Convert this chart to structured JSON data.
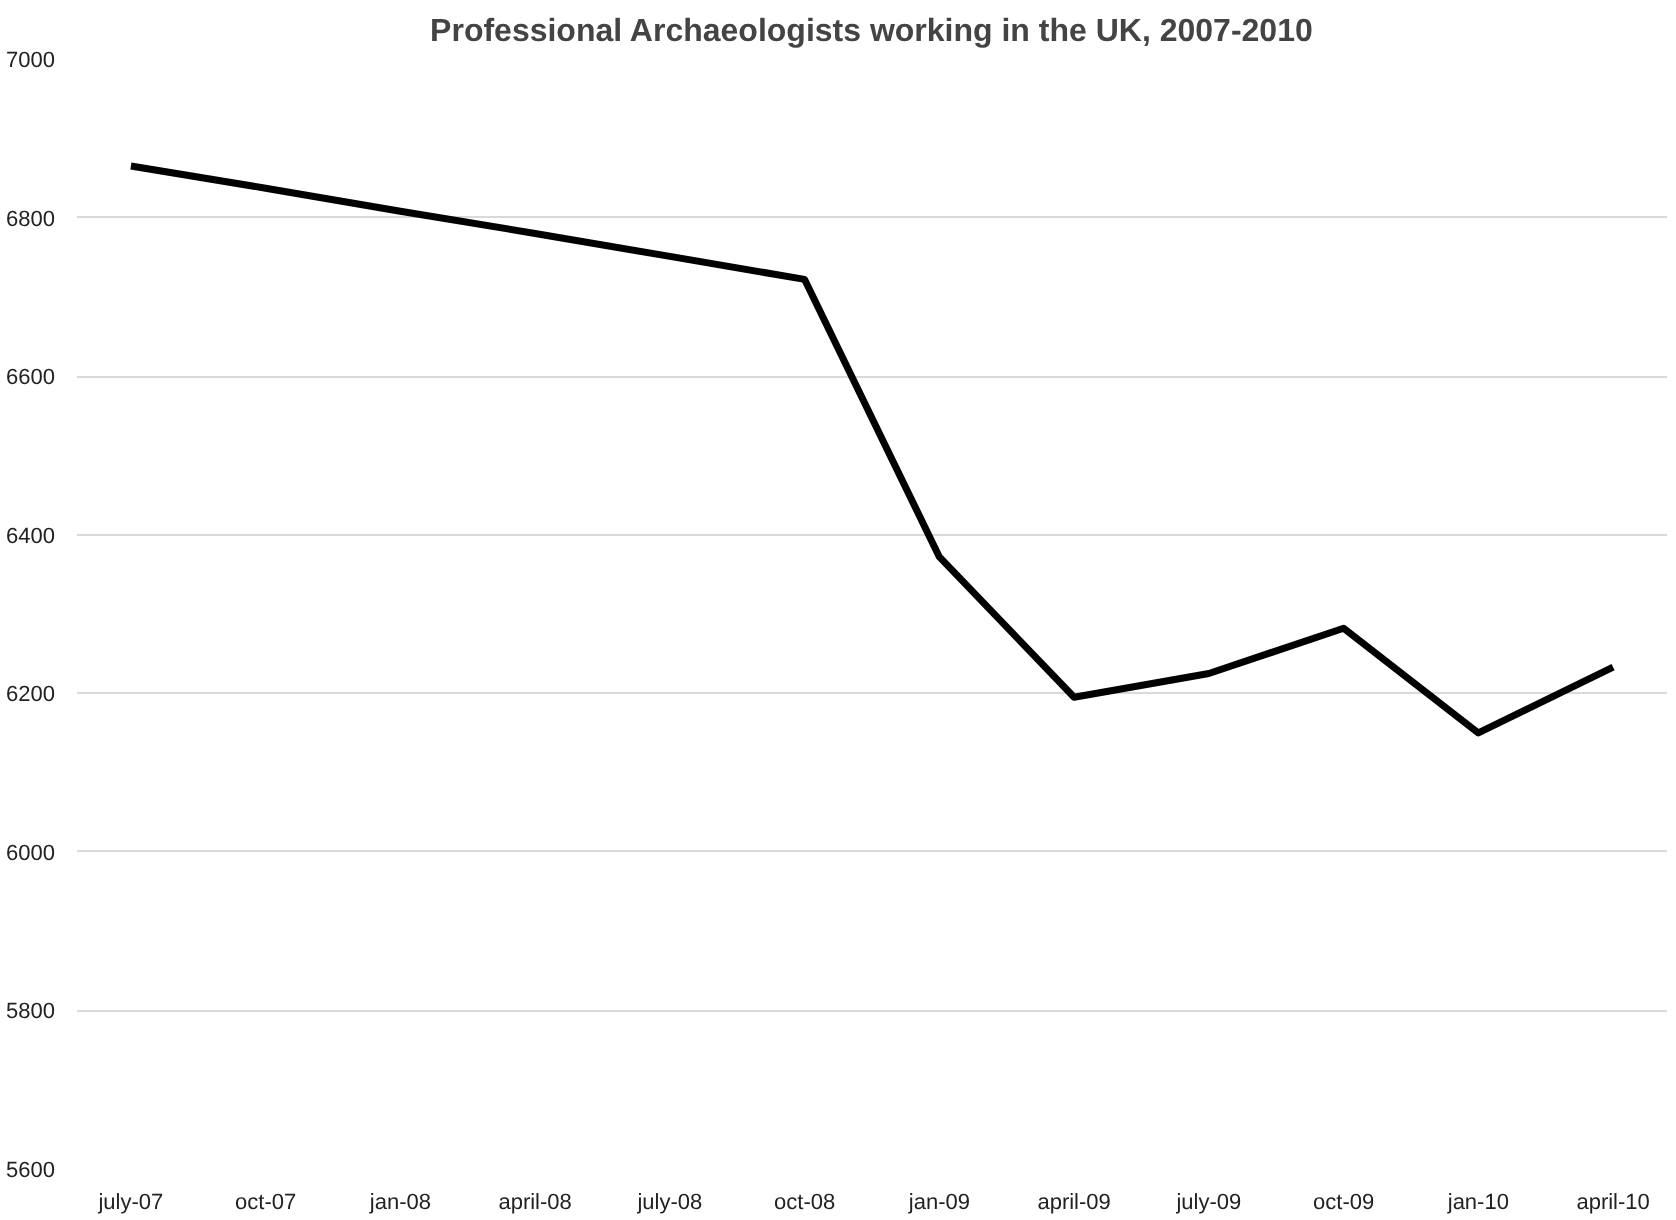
{
  "chart_data": {
    "type": "line",
    "title": "Professional Archaeologists working in the UK, 2007-2010",
    "categories": [
      "july-07",
      "oct-07",
      "jan-08",
      "april-08",
      "july-08",
      "oct-08",
      "jan-09",
      "april-09",
      "july-09",
      "oct-09",
      "jan-10",
      "april-10"
    ],
    "series": [
      {
        "color": "#000000",
        "values": [
          6865,
          6837,
          6808,
          6780,
          6751,
          6722,
          6372,
          6195,
          6225,
          6282,
          6150,
          6233
        ]
      }
    ],
    "ylim": [
      5600,
      7000
    ],
    "yticks": [
      5600,
      5800,
      6000,
      6200,
      6400,
      6600,
      6800,
      7000
    ],
    "grid": "y",
    "line_style": "solid"
  }
}
